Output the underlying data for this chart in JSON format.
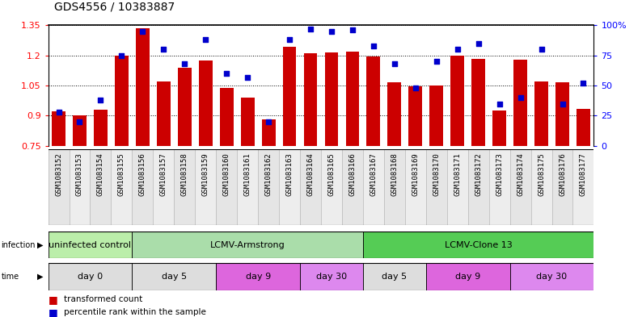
{
  "title": "GDS4556 / 10383887",
  "samples": [
    "GSM1083152",
    "GSM1083153",
    "GSM1083154",
    "GSM1083155",
    "GSM1083156",
    "GSM1083157",
    "GSM1083158",
    "GSM1083159",
    "GSM1083160",
    "GSM1083161",
    "GSM1083162",
    "GSM1083163",
    "GSM1083164",
    "GSM1083165",
    "GSM1083166",
    "GSM1083167",
    "GSM1083168",
    "GSM1083169",
    "GSM1083170",
    "GSM1083171",
    "GSM1083172",
    "GSM1083173",
    "GSM1083174",
    "GSM1083175",
    "GSM1083176",
    "GSM1083177"
  ],
  "bar_values": [
    0.92,
    0.9,
    0.93,
    1.2,
    1.335,
    1.07,
    1.14,
    1.175,
    1.04,
    0.99,
    0.88,
    1.245,
    1.21,
    1.215,
    1.22,
    1.195,
    1.065,
    1.045,
    1.05,
    1.2,
    1.185,
    0.925,
    1.18,
    1.07,
    1.065,
    0.935
  ],
  "dot_values": [
    28,
    20,
    38,
    75,
    95,
    80,
    68,
    88,
    60,
    57,
    20,
    88,
    97,
    95,
    96,
    83,
    68,
    48,
    70,
    80,
    85,
    35,
    40,
    80,
    35,
    52
  ],
  "ylim_left": [
    0.75,
    1.35
  ],
  "ylim_right": [
    0,
    100
  ],
  "yticks_left": [
    0.75,
    0.9,
    1.05,
    1.2,
    1.35
  ],
  "yticks_right": [
    0,
    25,
    50,
    75,
    100
  ],
  "ytick_labels_right": [
    "0",
    "25",
    "50",
    "75",
    "100%"
  ],
  "bar_color": "#cc0000",
  "dot_color": "#0000cc",
  "infection_groups": [
    {
      "label": "uninfected control",
      "start": 0,
      "end": 4,
      "color": "#bbeeaa"
    },
    {
      "label": "LCMV-Armstrong",
      "start": 4,
      "end": 15,
      "color": "#aaddaa"
    },
    {
      "label": "LCMV-Clone 13",
      "start": 15,
      "end": 26,
      "color": "#55cc55"
    }
  ],
  "time_groups": [
    {
      "label": "day 0",
      "start": 0,
      "end": 4,
      "color": "#dddddd"
    },
    {
      "label": "day 5",
      "start": 4,
      "end": 8,
      "color": "#dddddd"
    },
    {
      "label": "day 9",
      "start": 8,
      "end": 12,
      "color": "#dd66dd"
    },
    {
      "label": "day 30",
      "start": 12,
      "end": 15,
      "color": "#dd88ee"
    },
    {
      "label": "day 5",
      "start": 15,
      "end": 18,
      "color": "#dddddd"
    },
    {
      "label": "day 9",
      "start": 18,
      "end": 22,
      "color": "#dd66dd"
    },
    {
      "label": "day 30",
      "start": 22,
      "end": 26,
      "color": "#dd88ee"
    }
  ],
  "legend_items": [
    {
      "label": "transformed count",
      "color": "#cc0000"
    },
    {
      "label": "percentile rank within the sample",
      "color": "#0000cc"
    }
  ]
}
